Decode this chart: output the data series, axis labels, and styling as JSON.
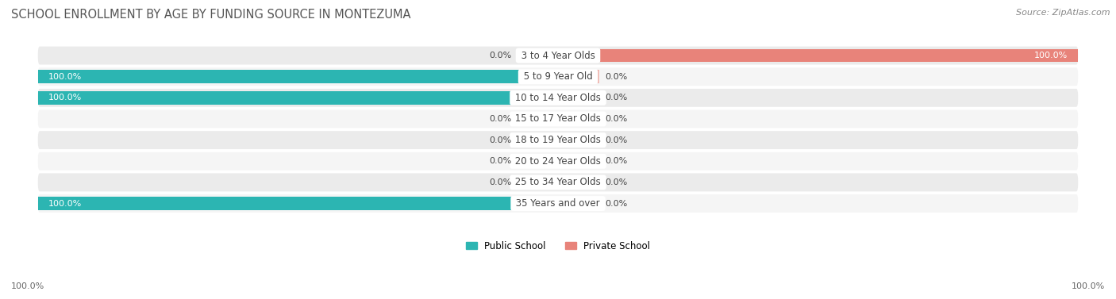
{
  "title": "SCHOOL ENROLLMENT BY AGE BY FUNDING SOURCE IN MONTEZUMA",
  "source": "Source: ZipAtlas.com",
  "categories": [
    "3 to 4 Year Olds",
    "5 to 9 Year Old",
    "10 to 14 Year Olds",
    "15 to 17 Year Olds",
    "18 to 19 Year Olds",
    "20 to 24 Year Olds",
    "25 to 34 Year Olds",
    "35 Years and over"
  ],
  "public_values": [
    0.0,
    100.0,
    100.0,
    0.0,
    0.0,
    0.0,
    0.0,
    100.0
  ],
  "private_values": [
    100.0,
    0.0,
    0.0,
    0.0,
    0.0,
    0.0,
    0.0,
    0.0
  ],
  "public_color": "#2cb5b2",
  "private_color": "#e8837a",
  "public_color_light": "#8dd4d4",
  "private_color_light": "#f0b8b2",
  "row_bg_color": "#ebebeb",
  "row_bg_color2": "#f5f5f5",
  "label_color_white": "#ffffff",
  "label_color_dark": "#444444",
  "bar_height": 0.62,
  "legend_public": "Public School",
  "legend_private": "Private School",
  "title_fontsize": 10.5,
  "label_fontsize": 8,
  "category_fontsize": 8.5,
  "source_fontsize": 8,
  "xlim": 100,
  "zero_stub": 8
}
